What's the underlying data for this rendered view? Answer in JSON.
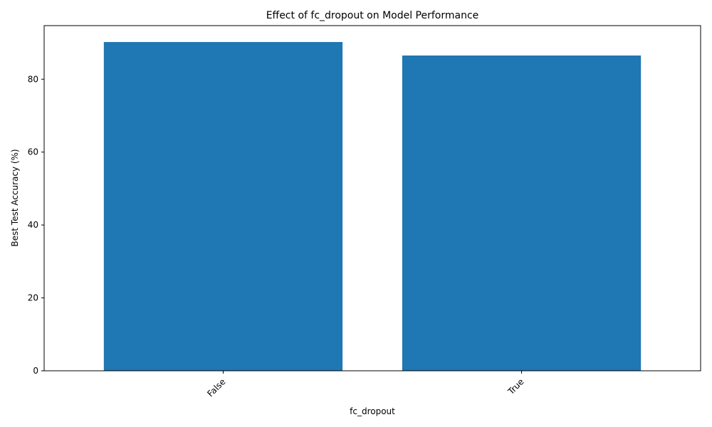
{
  "chart_data": {
    "type": "bar",
    "title": "Effect of fc_dropout on Model Performance",
    "xlabel": "fc_dropout",
    "ylabel": "Best Test Accuracy (%)",
    "categories": [
      "False",
      "True"
    ],
    "values": [
      90.2,
      86.5
    ],
    "ylim": [
      0,
      94.7
    ],
    "yticks": [
      0,
      20,
      40,
      60,
      80
    ],
    "xtick_rotation_deg": 45,
    "bar_color": "#1f77b4",
    "grid": false,
    "legend": "none"
  }
}
